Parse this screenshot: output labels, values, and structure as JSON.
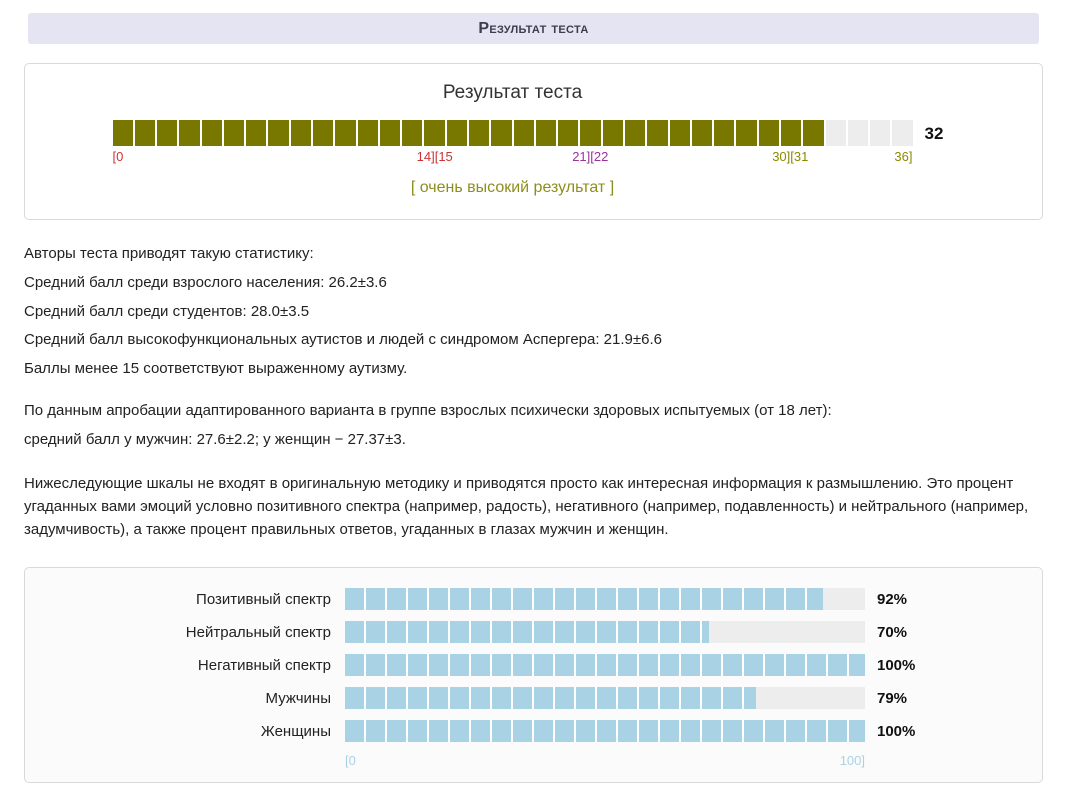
{
  "header": {
    "title": "Результат теста"
  },
  "stats": {
    "block1": [
      "Авторы теста приводят такую статистику:",
      "Средний балл среди взрослого населения: 26.2±3.6",
      "Средний балл среди студентов: 28.0±3.5",
      "Средний балл высокофункциональных аутистов и людей с синдромом Аспергера: 21.9±6.6",
      "Баллы менее 15 соответствуют выраженному аутизму."
    ],
    "block2": [
      "По данным апробации адаптированного варианта в группе взрослых психически здоровых испытуемых (от 18 лет):",
      "средний балл у мужчин: 27.6±2.2; у женщин − 27.37±3."
    ],
    "note": "Нижеследующие шкалы не входят в оригинальную методику и приводятся просто как интересная информация к размышлению. Это процент угаданных вами эмоций условно позитивного спектра (например, радость), негативного (например, подавленность) и нейтрального (например, задумчивость), а также процент правильных ответов, угаданных в глазах мужчин и женщин."
  },
  "chart_data": [
    {
      "type": "bar",
      "title": "Результат теста",
      "value": 32,
      "max": 36,
      "segments_total": 36,
      "annotation": "[ очень высокий результат ]",
      "fill_color": "#787800",
      "empty_color": "#ededed",
      "verdict_color": "#8e8e1e",
      "axis_labels": [
        {
          "text": "[0",
          "pos": 0,
          "color": "#cc3333"
        },
        {
          "text": "14][15",
          "pos": 14.5,
          "color": "#cc3333"
        },
        {
          "text": "21][22",
          "pos": 21.5,
          "color": "#993399"
        },
        {
          "text": "30][31",
          "pos": 30.5,
          "color": "#8a8a00"
        },
        {
          "text": "36]",
          "pos": 36,
          "color": "#8a8a00"
        }
      ]
    },
    {
      "type": "bar",
      "orientation": "horizontal",
      "categories": [
        "Позитивный спектр",
        "Нейтральный спектр",
        "Негативный спектр",
        "Мужчины",
        "Женщины"
      ],
      "values": [
        92,
        70,
        100,
        79,
        100
      ],
      "value_suffix": "%",
      "xlim": [
        0,
        100
      ],
      "axis_labels": [
        "[0",
        "100]"
      ],
      "fill_color": "#a9d3e4",
      "track_color": "#ededed",
      "axis_color": "#a9d3e4"
    }
  ]
}
